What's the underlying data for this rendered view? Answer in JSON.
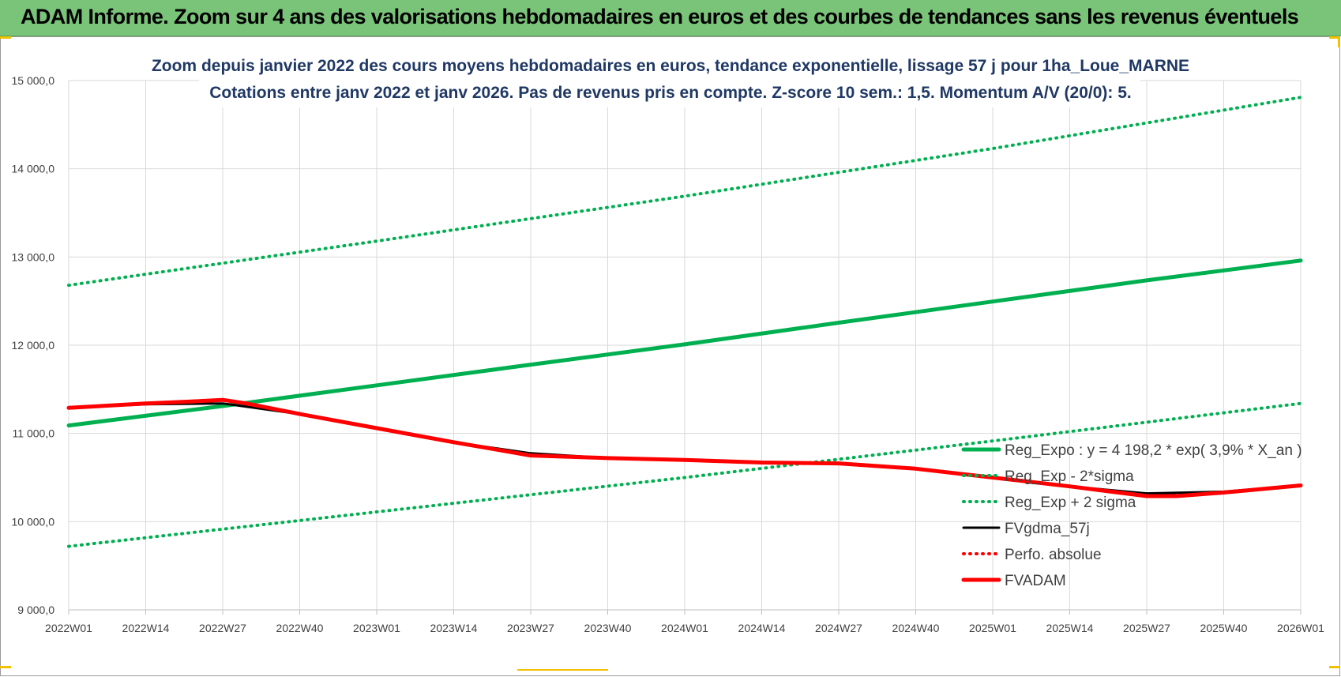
{
  "header": {
    "banner_title": "ADAM Informe. Zoom sur 4 ans des valorisations hebdomadaires en euros et des courbes de tendances sans les revenus éventuels"
  },
  "colors": {
    "banner_bg": "#7ac47a",
    "trend_green": "#00b050",
    "band_green": "#00b050",
    "fvgdma_black": "#000000",
    "perfo_red": "#ff0000",
    "fvadam_red": "#ff0000",
    "title_navy": "#1f3864"
  },
  "chart_data": {
    "type": "line",
    "title": "Zoom depuis janvier 2022 des cours moyens hebdomadaires en euros, tendance exponentielle, lissage 57 j pour 1ha_Loue_MARNE",
    "subtitle": "Cotations entre janv 2022 et janv 2026. Pas de revenus pris en compte. Z-score 10 sem.: 1,5. Momentum A/V (20/0): 5.",
    "xlabel": "",
    "ylabel": "",
    "x_ticks": [
      "2022W01",
      "2022W14",
      "2022W27",
      "2022W40",
      "2023W01",
      "2023W14",
      "2023W27",
      "2023W40",
      "2024W01",
      "2024W14",
      "2024W27",
      "2024W40",
      "2025W01",
      "2025W14",
      "2025W27",
      "2025W40",
      "2026W01"
    ],
    "x_range": [
      0,
      208
    ],
    "ylim": [
      9000,
      15000
    ],
    "y_ticks": [
      "9 000,0",
      "10 000,0",
      "11 000,0",
      "12 000,0",
      "13 000,0",
      "14 000,0",
      "15 000,0"
    ],
    "y_tick_values": [
      9000,
      10000,
      11000,
      12000,
      13000,
      14000,
      15000
    ],
    "grid": true,
    "legend_position": "bottom-right",
    "series": [
      {
        "name": "Reg_Expo : y = 4 198,2 * exp( 3,9% *  X_an )",
        "style": "solid-thick",
        "color": "#00b050",
        "x": [
          0,
          26,
          52,
          78,
          104,
          130,
          156,
          182,
          208
        ],
        "values": [
          11090,
          11310,
          11545,
          11780,
          12010,
          12255,
          12495,
          12735,
          12960
        ]
      },
      {
        "name": "Reg_Exp - 2*sigma",
        "style": "dotted",
        "color": "#00b050",
        "x": [
          0,
          52,
          104,
          156,
          208
        ],
        "values": [
          9720,
          10110,
          10500,
          10915,
          11340
        ]
      },
      {
        "name": "Reg_Exp + 2 sigma",
        "style": "dotted",
        "color": "#00b050",
        "x": [
          0,
          52,
          104,
          156,
          208
        ],
        "values": [
          12680,
          13180,
          13690,
          14230,
          14810
        ]
      },
      {
        "name": "FVgdma_57j",
        "style": "solid",
        "color": "#000000",
        "x": [
          0,
          13,
          26,
          39,
          52,
          65,
          78,
          91,
          104,
          117,
          130,
          143,
          156,
          169,
          182,
          195,
          208
        ],
        "values": [
          11290,
          11330,
          11340,
          11220,
          11060,
          10900,
          10775,
          10720,
          10700,
          10670,
          10660,
          10600,
          10500,
          10400,
          10320,
          10340,
          10410
        ]
      },
      {
        "name": "Perfo. absolue",
        "style": "dotted",
        "color": "#ff0000",
        "x": [
          0,
          13,
          26,
          39,
          52,
          65,
          78,
          91,
          104,
          117,
          130,
          143,
          156,
          169,
          182,
          195,
          208
        ],
        "values": [
          11290,
          11340,
          11380,
          11220,
          11060,
          10900,
          10750,
          10720,
          10700,
          10670,
          10660,
          10600,
          10500,
          10400,
          10290,
          10330,
          10410
        ]
      },
      {
        "name": "FVADAM",
        "style": "solid-thick",
        "color": "#ff0000",
        "x": [
          0,
          13,
          20,
          26,
          30,
          39,
          52,
          65,
          78,
          91,
          104,
          117,
          130,
          143,
          156,
          169,
          182,
          187,
          195,
          208
        ],
        "values": [
          11290,
          11340,
          11360,
          11380,
          11340,
          11220,
          11060,
          10900,
          10750,
          10720,
          10700,
          10670,
          10660,
          10600,
          10500,
          10400,
          10290,
          10290,
          10330,
          10410
        ]
      }
    ]
  }
}
